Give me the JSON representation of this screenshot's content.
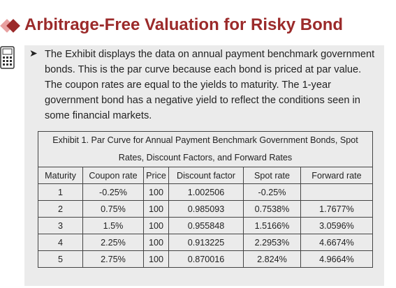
{
  "header": {
    "title": "Arbitrage-Free Valuation for Risky Bond"
  },
  "body": {
    "bullet": "The Exhibit displays the data on annual payment benchmark government bonds. This is the par curve because each bond is priced at par value. The coupon rates are equal to the yields to maturity. The 1-year government bond has a negative yield to reflect the conditions seen in some financial markets."
  },
  "table": {
    "caption": "Exhibit 1. Par Curve for Annual Payment Benchmark Government Bonds, Spot Rates, Discount Factors, and Forward Rates",
    "columns": [
      "Maturity",
      "Coupon rate",
      "Price",
      "Discount factor",
      "Spot rate",
      "Forward rate"
    ],
    "rows": [
      [
        "1",
        "-0.25%",
        "100",
        "1.002506",
        "-0.25%"
      ],
      [
        "2",
        "0.75%",
        "100",
        "0.985093",
        "0.7538%",
        "1.7677%"
      ],
      [
        "3",
        "1.5%",
        "100",
        "0.955848",
        "1.5166%",
        "3.0596%"
      ],
      [
        "4",
        "2.25%",
        "100",
        "0.913225",
        "2.2953%",
        "4.6674%"
      ],
      [
        "5",
        "2.75%",
        "100",
        "0.870016",
        "2.824%",
        "4.9664%"
      ]
    ]
  }
}
